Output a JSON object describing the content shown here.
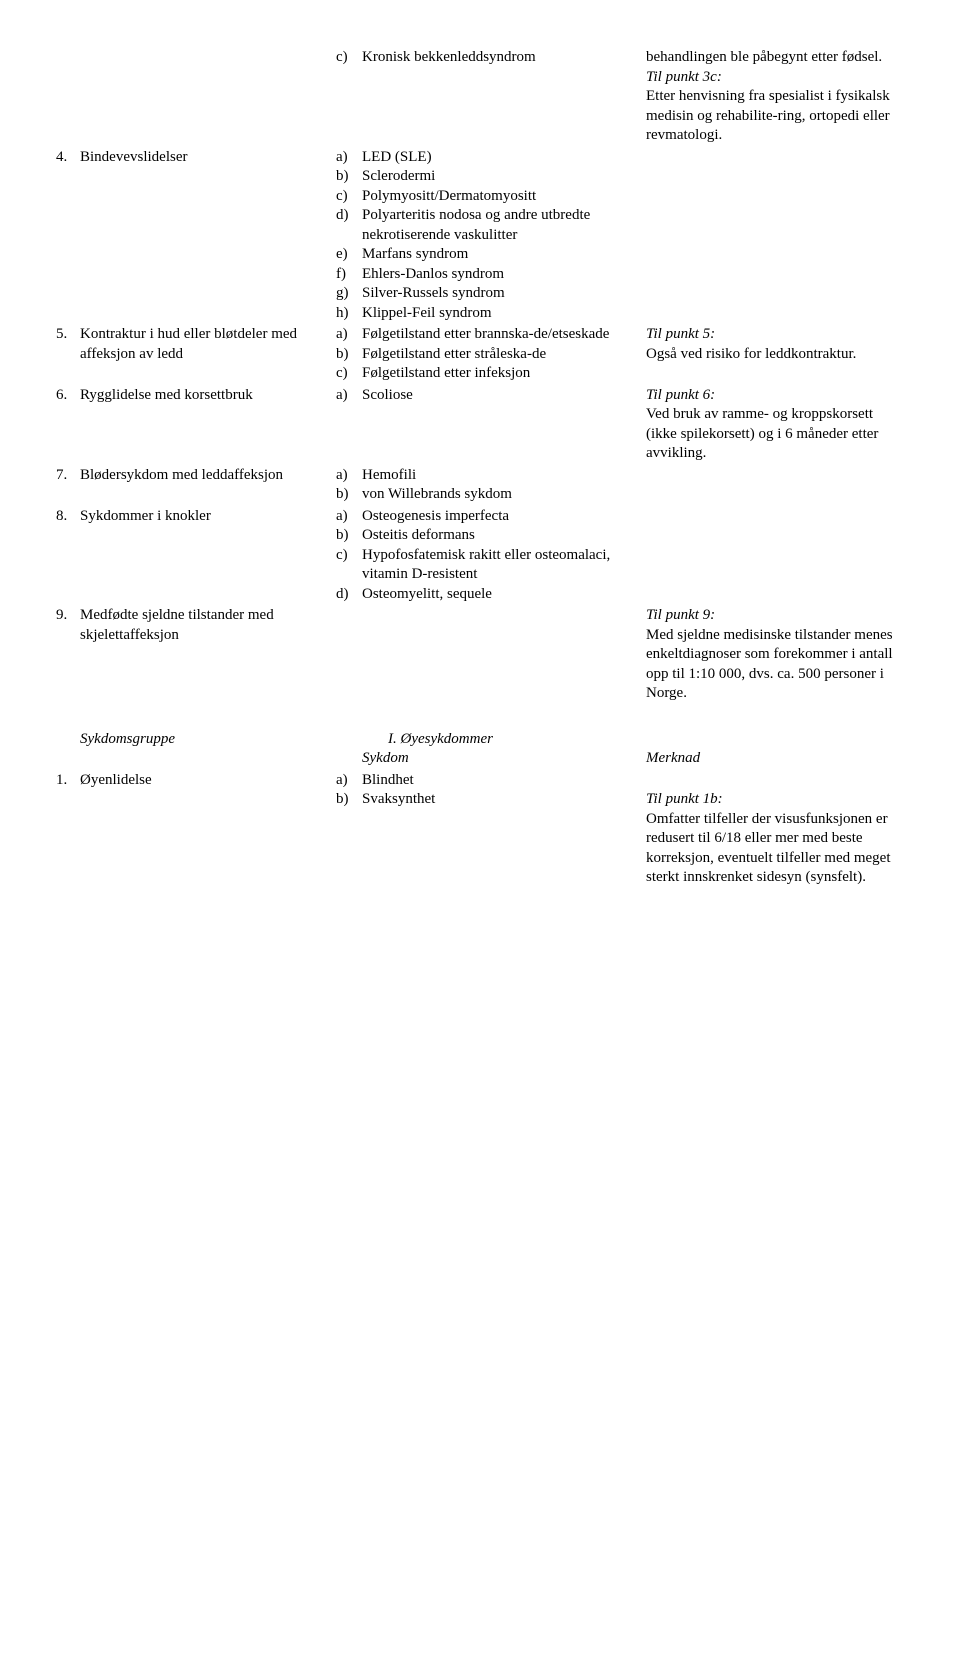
{
  "rows": [
    {
      "num": "",
      "label": "",
      "subs": [
        {
          "l": "c)",
          "t": "Kronisk bekkenleddsyndrom"
        }
      ],
      "note": "behandlingen ble påbegynt etter fødsel.",
      "note2_i": "Til punkt 3c:",
      "note2": "Etter henvisning fra spesialist i fysikalsk medisin og rehabilite-ring, ortopedi eller revmatologi."
    },
    {
      "num": "4.",
      "label": "Bindevevslidelser",
      "subs": [
        {
          "l": "a)",
          "t": "LED (SLE)"
        },
        {
          "l": "b)",
          "t": "Sclerodermi"
        },
        {
          "l": "c)",
          "t": "Polymyositt/Dermatomyositt"
        },
        {
          "l": "d)",
          "t": "Polyarteritis nodosa og andre utbredte nekrotiserende vaskulitter"
        },
        {
          "l": "e)",
          "t": "Marfans syndrom"
        },
        {
          "l": "f)",
          "t": "Ehlers-Danlos syndrom"
        },
        {
          "l": "g)",
          "t": "Silver-Russels syndrom"
        },
        {
          "l": "h)",
          "t": "Klippel-Feil syndrom"
        }
      ]
    },
    {
      "num": "5.",
      "label": "Kontraktur i hud eller bløtdeler med affeksjon av ledd",
      "subs": [
        {
          "l": "a)",
          "t": "Følgetilstand etter brannska-de/etseskade"
        },
        {
          "l": "b)",
          "t": "Følgetilstand etter stråleska-de"
        },
        {
          "l": "c)",
          "t": "Følgetilstand etter infeksjon"
        }
      ],
      "note_i": "Til punkt 5:",
      "note": "Også ved risiko for leddkontraktur."
    },
    {
      "num": "6.",
      "label": "Rygglidelse med korsettbruk",
      "subs": [
        {
          "l": "a)",
          "t": "Scoliose"
        }
      ],
      "note_i": "Til punkt 6:",
      "note": "Ved bruk av ramme- og kroppskorsett (ikke spilekorsett) og i 6 måneder etter avvikling."
    },
    {
      "num": "7.",
      "label": "Blødersykdom med leddaffeksjon",
      "subs": [
        {
          "l": "a)",
          "t": "Hemofili"
        },
        {
          "l": "b)",
          "t": "von Willebrands sykdom"
        }
      ]
    },
    {
      "num": "8.",
      "label": "Sykdommer i knokler",
      "subs": [
        {
          "l": "a)",
          "t": "Osteogenesis imperfecta"
        },
        {
          "l": "b)",
          "t": "Osteitis deformans"
        },
        {
          "l": "c)",
          "t": "Hypofosfatemisk rakitt eller osteomalaci, vitamin D-resistent"
        },
        {
          "l": "d)",
          "t": "Osteomyelitt, sequele"
        }
      ]
    },
    {
      "num": "9.",
      "label": "Medfødte sjeldne tilstander med skjelettaffeksjon",
      "subs": [],
      "note_i": "Til punkt 9:",
      "note": "Med sjeldne medisinske tilstander menes enkeltdiagnoser som forekommer i antall opp til 1:10 000, dvs. ca. 500 personer i Norge."
    }
  ],
  "section2": {
    "heading": "I. Øyesykdommer",
    "group_label": "Sykdomsgruppe",
    "col2_label": "Sykdom",
    "col3_label": "Merknad",
    "rows": [
      {
        "num": "1.",
        "label": "Øyenlidelse",
        "subs": [
          {
            "l": "a)",
            "t": "Blindhet"
          },
          {
            "l": "b)",
            "t": "Svaksynthet"
          }
        ],
        "note_i": "Til punkt 1b:",
        "note": "Omfatter tilfeller der visusfunksjonen er redusert til 6/18 eller mer med beste korreksjon, eventuelt tilfeller med meget sterkt innskrenket sidesyn (synsfelt)."
      }
    ]
  }
}
